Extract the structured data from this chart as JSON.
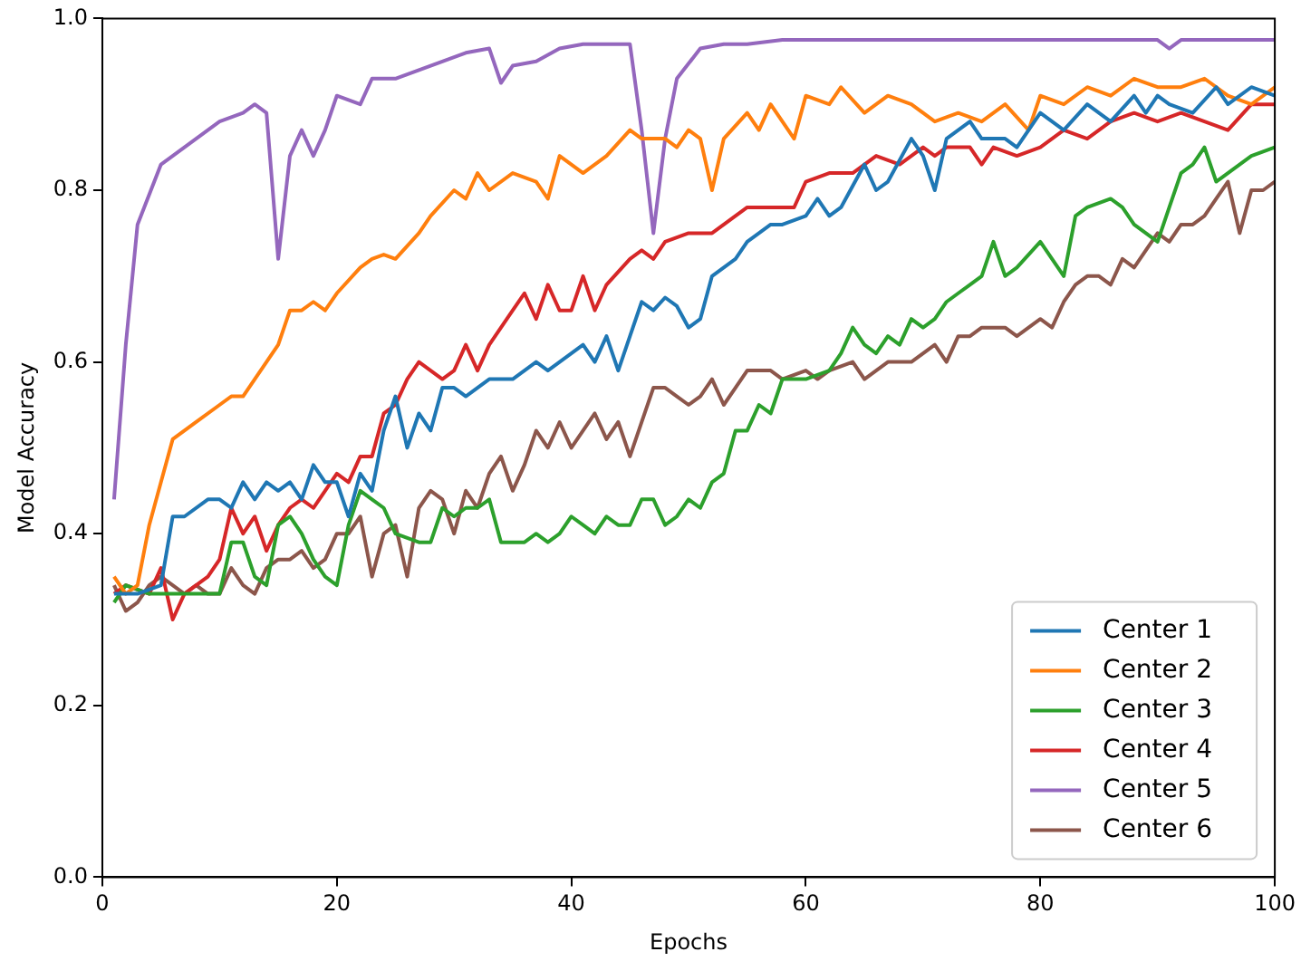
{
  "chart_data": {
    "type": "line",
    "xlabel": "Epochs",
    "ylabel": "Model Accuracy",
    "xlim": [
      0,
      100
    ],
    "xticks": [
      0,
      20,
      40,
      60,
      80,
      100
    ],
    "ylim": [
      0,
      1
    ],
    "yticks": [
      {
        "value": 0,
        "label": "0.0"
      },
      {
        "value": 0.2,
        "label": "0.2"
      },
      {
        "value": 0.4,
        "label": "0.4"
      },
      {
        "value": 0.6,
        "label": "0.6"
      },
      {
        "value": 0.8,
        "label": "0.8"
      },
      {
        "value": 1,
        "label": "1.0"
      }
    ],
    "legend": "bottom right",
    "grid": false,
    "marker": "none",
    "line_style": "solid",
    "series": [
      {
        "name": "Center 1",
        "color": "#1f77b4",
        "x": [
          1,
          3,
          5,
          6,
          7,
          9,
          10,
          11,
          12,
          13,
          14,
          15,
          16,
          17,
          18,
          19,
          20,
          21,
          22,
          23,
          24,
          25,
          26,
          27,
          28,
          29,
          30,
          31,
          32,
          33,
          35,
          37,
          38,
          40,
          41,
          42,
          43,
          44,
          45,
          46,
          47,
          48,
          49,
          50,
          51,
          52,
          54,
          55,
          57,
          58,
          60,
          61,
          62,
          63,
          65,
          66,
          67,
          69,
          70,
          71,
          72,
          74,
          75,
          77,
          78,
          80,
          82,
          84,
          86,
          88,
          89,
          90,
          91,
          93,
          95,
          96,
          98,
          100
        ],
        "values": [
          0.33,
          0.33,
          0.34,
          0.42,
          0.42,
          0.44,
          0.44,
          0.43,
          0.46,
          0.44,
          0.46,
          0.45,
          0.46,
          0.44,
          0.48,
          0.46,
          0.46,
          0.42,
          0.47,
          0.45,
          0.52,
          0.56,
          0.5,
          0.54,
          0.52,
          0.57,
          0.57,
          0.56,
          0.57,
          0.58,
          0.58,
          0.6,
          0.59,
          0.61,
          0.62,
          0.6,
          0.63,
          0.59,
          0.63,
          0.67,
          0.66,
          0.675,
          0.665,
          0.64,
          0.65,
          0.7,
          0.72,
          0.74,
          0.76,
          0.76,
          0.77,
          0.79,
          0.77,
          0.78,
          0.83,
          0.8,
          0.81,
          0.86,
          0.84,
          0.8,
          0.86,
          0.88,
          0.86,
          0.86,
          0.85,
          0.89,
          0.87,
          0.9,
          0.88,
          0.91,
          0.89,
          0.91,
          0.9,
          0.89,
          0.92,
          0.9,
          0.92,
          0.91
        ]
      },
      {
        "name": "Center 2",
        "color": "#ff7f0e",
        "x": [
          1,
          2,
          3,
          4,
          5,
          6,
          8,
          10,
          11,
          12,
          13,
          14,
          15,
          16,
          17,
          18,
          19,
          20,
          22,
          23,
          24,
          25,
          27,
          28,
          30,
          31,
          32,
          33,
          35,
          37,
          38,
          39,
          41,
          43,
          45,
          46,
          48,
          49,
          50,
          51,
          52,
          53,
          55,
          56,
          57,
          59,
          60,
          62,
          63,
          65,
          67,
          69,
          71,
          73,
          75,
          77,
          79,
          80,
          82,
          84,
          86,
          88,
          90,
          92,
          94,
          96,
          98,
          100
        ],
        "values": [
          0.35,
          0.33,
          0.34,
          0.41,
          0.46,
          0.51,
          0.53,
          0.55,
          0.56,
          0.56,
          0.58,
          0.6,
          0.62,
          0.66,
          0.66,
          0.67,
          0.66,
          0.68,
          0.71,
          0.72,
          0.725,
          0.72,
          0.75,
          0.77,
          0.8,
          0.79,
          0.82,
          0.8,
          0.82,
          0.81,
          0.79,
          0.84,
          0.82,
          0.84,
          0.87,
          0.86,
          0.86,
          0.85,
          0.87,
          0.86,
          0.8,
          0.86,
          0.89,
          0.87,
          0.9,
          0.86,
          0.91,
          0.9,
          0.92,
          0.89,
          0.91,
          0.9,
          0.88,
          0.89,
          0.88,
          0.9,
          0.87,
          0.91,
          0.9,
          0.92,
          0.91,
          0.93,
          0.92,
          0.92,
          0.93,
          0.91,
          0.9,
          0.92
        ]
      },
      {
        "name": "Center 3",
        "color": "#2ca02c",
        "x": [
          1,
          2,
          4,
          6,
          8,
          10,
          11,
          12,
          13,
          14,
          15,
          16,
          17,
          18,
          19,
          20,
          21,
          22,
          23,
          24,
          25,
          27,
          28,
          29,
          30,
          31,
          32,
          33,
          34,
          35,
          36,
          37,
          38,
          39,
          40,
          41,
          42,
          43,
          44,
          45,
          46,
          47,
          48,
          49,
          50,
          51,
          52,
          53,
          54,
          55,
          56,
          57,
          58,
          60,
          62,
          63,
          64,
          65,
          66,
          67,
          68,
          69,
          70,
          71,
          72,
          73,
          74,
          75,
          76,
          77,
          78,
          80,
          81,
          82,
          83,
          84,
          86,
          87,
          88,
          89,
          90,
          91,
          92,
          93,
          94,
          95,
          96,
          98,
          100
        ],
        "values": [
          0.32,
          0.34,
          0.33,
          0.33,
          0.33,
          0.33,
          0.39,
          0.39,
          0.35,
          0.34,
          0.41,
          0.42,
          0.4,
          0.37,
          0.35,
          0.34,
          0.41,
          0.45,
          0.44,
          0.43,
          0.4,
          0.39,
          0.39,
          0.43,
          0.42,
          0.43,
          0.43,
          0.44,
          0.39,
          0.39,
          0.39,
          0.4,
          0.39,
          0.4,
          0.42,
          0.41,
          0.4,
          0.42,
          0.41,
          0.41,
          0.44,
          0.44,
          0.41,
          0.42,
          0.44,
          0.43,
          0.46,
          0.47,
          0.52,
          0.52,
          0.55,
          0.54,
          0.58,
          0.58,
          0.59,
          0.61,
          0.64,
          0.62,
          0.61,
          0.63,
          0.62,
          0.65,
          0.64,
          0.65,
          0.67,
          0.68,
          0.69,
          0.7,
          0.74,
          0.7,
          0.71,
          0.74,
          0.72,
          0.7,
          0.77,
          0.78,
          0.79,
          0.78,
          0.76,
          0.75,
          0.74,
          0.78,
          0.82,
          0.83,
          0.85,
          0.81,
          0.82,
          0.84,
          0.85
        ]
      },
      {
        "name": "Center 4",
        "color": "#d62728",
        "x": [
          1,
          2,
          4,
          5,
          6,
          7,
          9,
          10,
          11,
          12,
          13,
          14,
          15,
          16,
          17,
          18,
          19,
          20,
          21,
          22,
          23,
          24,
          25,
          26,
          27,
          28,
          29,
          30,
          31,
          32,
          33,
          34,
          35,
          36,
          37,
          38,
          39,
          40,
          41,
          42,
          43,
          45,
          46,
          47,
          48,
          50,
          52,
          53,
          55,
          57,
          59,
          60,
          62,
          64,
          66,
          68,
          70,
          71,
          72,
          74,
          75,
          76,
          78,
          80,
          82,
          84,
          86,
          88,
          90,
          92,
          94,
          96,
          98,
          100
        ],
        "values": [
          0.33,
          0.34,
          0.33,
          0.36,
          0.3,
          0.33,
          0.35,
          0.37,
          0.43,
          0.4,
          0.42,
          0.38,
          0.41,
          0.43,
          0.44,
          0.43,
          0.45,
          0.47,
          0.46,
          0.49,
          0.49,
          0.54,
          0.55,
          0.58,
          0.6,
          0.59,
          0.58,
          0.59,
          0.62,
          0.59,
          0.62,
          0.64,
          0.66,
          0.68,
          0.65,
          0.69,
          0.66,
          0.66,
          0.7,
          0.66,
          0.69,
          0.72,
          0.73,
          0.72,
          0.74,
          0.75,
          0.75,
          0.76,
          0.78,
          0.78,
          0.78,
          0.81,
          0.82,
          0.82,
          0.84,
          0.83,
          0.85,
          0.84,
          0.85,
          0.85,
          0.83,
          0.85,
          0.84,
          0.85,
          0.87,
          0.86,
          0.88,
          0.89,
          0.88,
          0.89,
          0.88,
          0.87,
          0.9,
          0.9
        ]
      },
      {
        "name": "Center 5",
        "color": "#9467bd",
        "x": [
          1,
          2,
          3,
          5,
          6,
          8,
          10,
          12,
          13,
          14,
          15,
          16,
          17,
          18,
          19,
          20,
          22,
          23,
          25,
          27,
          29,
          31,
          33,
          34,
          35,
          37,
          39,
          41,
          43,
          45,
          46,
          47,
          48,
          49,
          51,
          53,
          55,
          58,
          70,
          90,
          91,
          92,
          100
        ],
        "values": [
          0.44,
          0.62,
          0.76,
          0.83,
          0.84,
          0.86,
          0.88,
          0.89,
          0.9,
          0.89,
          0.72,
          0.84,
          0.87,
          0.84,
          0.87,
          0.91,
          0.9,
          0.93,
          0.93,
          0.94,
          0.95,
          0.96,
          0.965,
          0.925,
          0.945,
          0.95,
          0.965,
          0.97,
          0.97,
          0.97,
          0.87,
          0.75,
          0.86,
          0.93,
          0.965,
          0.97,
          0.97,
          0.975,
          0.975,
          0.975,
          0.965,
          0.975,
          0.975
        ]
      },
      {
        "name": "Center 6",
        "color": "#8c564b",
        "x": [
          1,
          2,
          3,
          4,
          5,
          6,
          7,
          8,
          9,
          10,
          11,
          12,
          13,
          14,
          15,
          16,
          17,
          18,
          19,
          20,
          21,
          22,
          23,
          24,
          25,
          26,
          27,
          28,
          29,
          30,
          31,
          32,
          33,
          34,
          35,
          36,
          37,
          38,
          39,
          40,
          41,
          42,
          43,
          44,
          45,
          46,
          47,
          48,
          49,
          50,
          51,
          52,
          53,
          54,
          55,
          57,
          58,
          60,
          61,
          62,
          64,
          65,
          67,
          69,
          71,
          72,
          73,
          74,
          75,
          77,
          78,
          79,
          80,
          81,
          82,
          83,
          84,
          85,
          86,
          87,
          88,
          89,
          90,
          91,
          92,
          93,
          94,
          95,
          96,
          97,
          98,
          99,
          100
        ],
        "values": [
          0.34,
          0.31,
          0.32,
          0.34,
          0.35,
          0.34,
          0.33,
          0.34,
          0.33,
          0.33,
          0.36,
          0.34,
          0.33,
          0.36,
          0.37,
          0.37,
          0.38,
          0.36,
          0.37,
          0.4,
          0.4,
          0.42,
          0.35,
          0.4,
          0.41,
          0.35,
          0.43,
          0.45,
          0.44,
          0.4,
          0.45,
          0.43,
          0.47,
          0.49,
          0.45,
          0.48,
          0.52,
          0.5,
          0.53,
          0.5,
          0.52,
          0.54,
          0.51,
          0.53,
          0.49,
          0.53,
          0.57,
          0.57,
          0.56,
          0.55,
          0.56,
          0.58,
          0.55,
          0.57,
          0.59,
          0.59,
          0.58,
          0.59,
          0.58,
          0.59,
          0.6,
          0.58,
          0.6,
          0.6,
          0.62,
          0.6,
          0.63,
          0.63,
          0.64,
          0.64,
          0.63,
          0.64,
          0.65,
          0.64,
          0.67,
          0.69,
          0.7,
          0.7,
          0.69,
          0.72,
          0.71,
          0.73,
          0.75,
          0.74,
          0.76,
          0.76,
          0.77,
          0.79,
          0.81,
          0.75,
          0.8,
          0.8,
          0.81
        ]
      }
    ]
  }
}
